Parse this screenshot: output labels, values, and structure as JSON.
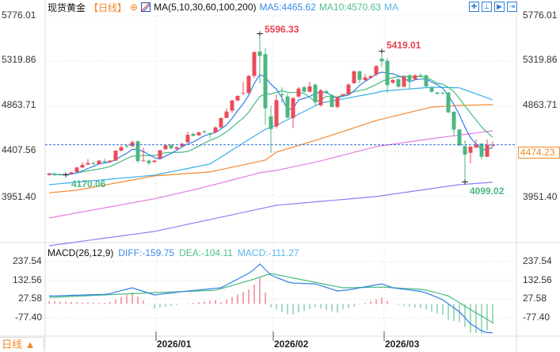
{
  "header": {
    "symbol": "现货黄金",
    "period": "【日线】",
    "ma_label": "MA(5,10,30,60,100,200)",
    "ma5": "MA5:4465.62",
    "ma10": "MA10:4570.63",
    "ma_more": "MA"
  },
  "toolbar": {
    "icons": [
      "crosshair-icon",
      "fit-icon",
      "range-icon",
      "exit-icon"
    ]
  },
  "macd_header": {
    "label": "MACD(26,12,9)",
    "diff": "DIFF:-159.75",
    "dea": "DEA:-104.11",
    "macd": "MACD:-111.27"
  },
  "price_axis": [
    "5776.01",
    "5319.86",
    "4863.71",
    "4407.56",
    "3951.40"
  ],
  "macd_axis": [
    "237.54",
    "132.56",
    "27.58",
    "-77.40"
  ],
  "dates": [
    "2026/01",
    "2026/02",
    "2026/03"
  ],
  "bottom_left": "日线 ▲",
  "last_price": "4474.23",
  "annotations": {
    "high1": "5596.33",
    "high2": "5419.01",
    "low1": "4170.06",
    "low2": "4099.02"
  },
  "colors": {
    "up": "#eb4b5a",
    "down": "#4cb782",
    "ma5": "#2f7fe6",
    "ma10": "#45bb7e",
    "ma30": "#36aee8",
    "ma60": "#f7892e",
    "ma100": "#e47ce0",
    "ma200": "#8d7ff2",
    "last": "#2a6fd6"
  },
  "chart_data": {
    "type": "candlestick",
    "title": "现货黄金 日线",
    "candle_fields": [
      "open",
      "close",
      "high",
      "low"
    ],
    "candles": [
      [
        4170,
        4183,
        4192,
        4160
      ],
      [
        4182,
        4168,
        4200,
        4160
      ],
      [
        4176,
        4170,
        4185,
        4160
      ],
      [
        4172,
        4176,
        4182,
        4170.06
      ],
      [
        4180,
        4196,
        4205,
        4175
      ],
      [
        4200,
        4245,
        4250,
        4195
      ],
      [
        4245,
        4272,
        4300,
        4240
      ],
      [
        4275,
        4290,
        4330,
        4270
      ],
      [
        4290,
        4282,
        4310,
        4270
      ],
      [
        4280,
        4315,
        4320,
        4275
      ],
      [
        4310,
        4300,
        4335,
        4295
      ],
      [
        4300,
        4315,
        4320,
        4295
      ],
      [
        4315,
        4415,
        4420,
        4310
      ],
      [
        4415,
        4450,
        4470,
        4410
      ],
      [
        4465,
        4460,
        4480,
        4440
      ],
      [
        4460,
        4500,
        4520,
        4455
      ],
      [
        4510,
        4310,
        4515,
        4290
      ],
      [
        4310,
        4315,
        4445,
        4310
      ],
      [
        4315,
        4290,
        4325,
        4270
      ],
      [
        4300,
        4315,
        4325,
        4295
      ],
      [
        4335,
        4420,
        4425,
        4330
      ],
      [
        4430,
        4470,
        4475,
        4420
      ],
      [
        4470,
        4440,
        4480,
        4425
      ],
      [
        4435,
        4450,
        4460,
        4425
      ],
      [
        4460,
        4485,
        4495,
        4455
      ],
      [
        4500,
        4575,
        4610,
        4495
      ],
      [
        4585,
        4565,
        4600,
        4560
      ],
      [
        4570,
        4600,
        4610,
        4565
      ],
      [
        4610,
        4600,
        4620,
        4590
      ],
      [
        4590,
        4575,
        4600,
        4540
      ],
      [
        4600,
        4650,
        4660,
        4595
      ],
      [
        4650,
        4745,
        4750,
        4645
      ],
      [
        4745,
        4810,
        4840,
        4745
      ],
      [
        4820,
        4922,
        4930,
        4800
      ],
      [
        4922,
        4968,
        4975,
        4915
      ],
      [
        4990,
        4996,
        5110,
        4985
      ],
      [
        4996,
        5170,
        5180,
        4990
      ],
      [
        5170,
        5410,
        5420,
        5150
      ],
      [
        5416,
        5370,
        5596.33,
        5095
      ],
      [
        5390,
        4842,
        5448,
        4677
      ],
      [
        4762,
        4634,
        4869,
        4395
      ],
      [
        4660,
        4925,
        4983,
        4640
      ],
      [
        4985,
        4975,
        5055,
        4900
      ],
      [
        4962,
        4749,
        4990,
        4745
      ],
      [
        4744,
        4944,
        4960,
        4642
      ],
      [
        4962,
        5042,
        5060,
        4950
      ],
      [
        5056,
        5010,
        5070,
        5000
      ],
      [
        5010,
        5064,
        5110,
        5005
      ],
      [
        5082,
        4904,
        5090,
        4870
      ],
      [
        4874,
        5024,
        5040,
        4860
      ],
      [
        5016,
        5002,
        5030,
        4990
      ],
      [
        4976,
        4856,
        4985,
        4850
      ],
      [
        4856,
        4955,
        4965,
        4840
      ],
      [
        4970,
        4984,
        4990,
        4965
      ],
      [
        4984,
        5083,
        5095,
        4980
      ],
      [
        5096,
        5216,
        5226,
        5090
      ],
      [
        5216,
        5130,
        5226,
        5095
      ],
      [
        5128,
        5155,
        5190,
        5110
      ],
      [
        5150,
        5168,
        5175,
        5140
      ],
      [
        5184,
        5269,
        5280,
        5165
      ],
      [
        5344,
        5317,
        5419.01,
        5260
      ],
      [
        5323,
        5077,
        5350,
        5000
      ],
      [
        5101,
        5128,
        5140,
        5090
      ],
      [
        5136,
        5061,
        5145,
        5050
      ],
      [
        5061,
        5162,
        5170,
        5055
      ],
      [
        5176,
        5123,
        5190,
        5040
      ],
      [
        5136,
        5176,
        5186,
        5130
      ],
      [
        5176,
        5168,
        5200,
        5160
      ],
      [
        5176,
        5064,
        5185,
        5055
      ],
      [
        5056,
        5010,
        5060,
        5000
      ],
      [
        5002,
        4989,
        5010,
        4980
      ],
      [
        4998,
        4990,
        5010,
        4980
      ],
      [
        5002,
        4802,
        5010,
        4795
      ],
      [
        4808,
        4629,
        4812,
        4560
      ],
      [
        4629,
        4469,
        4635,
        4460
      ],
      [
        4461,
        4376,
        4520,
        4099.02
      ],
      [
        4394,
        4456,
        4462,
        4288
      ],
      [
        4448,
        4477,
        4530,
        4440
      ],
      [
        4488,
        4354,
        4490,
        4330
      ],
      [
        4354,
        4474,
        4530,
        4350
      ],
      [
        4463,
        4474.23,
        4506,
        4451
      ]
    ],
    "ma_sparse": {
      "ma30": [
        [
          0,
          4072
        ],
        [
          19,
          4168
        ],
        [
          29,
          4280
        ],
        [
          39,
          4632
        ],
        [
          41,
          4672
        ],
        [
          49,
          4896
        ],
        [
          59,
          5000
        ],
        [
          60,
          5016
        ],
        [
          69,
          5056
        ],
        [
          74,
          5050
        ],
        [
          80,
          4928
        ]
      ],
      "ma60": [
        [
          0,
          3990
        ],
        [
          5,
          4016
        ],
        [
          19,
          4160
        ],
        [
          29,
          4200
        ],
        [
          39,
          4320
        ],
        [
          41,
          4400
        ],
        [
          49,
          4536
        ],
        [
          59,
          4720
        ],
        [
          69,
          4856
        ],
        [
          74,
          4872
        ],
        [
          80,
          4880
        ]
      ],
      "ma100": [
        [
          0,
          3736
        ],
        [
          19,
          3930
        ],
        [
          27,
          4032
        ],
        [
          38,
          4192
        ],
        [
          41,
          4216
        ],
        [
          49,
          4312
        ],
        [
          59,
          4456
        ],
        [
          69,
          4536
        ],
        [
          80,
          4616
        ]
      ],
      "ma200": [
        [
          0,
          3456
        ],
        [
          19,
          3600
        ],
        [
          41,
          3864
        ],
        [
          59,
          3952
        ],
        [
          74,
          4072
        ],
        [
          80,
          4096
        ]
      ]
    },
    "macd": {
      "diff": [
        [
          0,
          45
        ],
        [
          10.5,
          55
        ],
        [
          15,
          91
        ],
        [
          19,
          51
        ],
        [
          25,
          73
        ],
        [
          31,
          91
        ],
        [
          36.5,
          180
        ],
        [
          38,
          224
        ],
        [
          40,
          162
        ],
        [
          43.5,
          118
        ],
        [
          48,
          113
        ],
        [
          52,
          73
        ],
        [
          54.5,
          82
        ],
        [
          56,
          91
        ],
        [
          60,
          113
        ],
        [
          62,
          91
        ],
        [
          67.5,
          69
        ],
        [
          71,
          24
        ],
        [
          74,
          -43
        ],
        [
          76,
          -110
        ],
        [
          78.5,
          -159
        ],
        [
          80,
          -159.75
        ]
      ],
      "dea": [
        [
          0,
          37
        ],
        [
          19,
          64
        ],
        [
          30,
          77
        ],
        [
          36.5,
          135
        ],
        [
          40,
          171
        ],
        [
          45,
          140
        ],
        [
          53,
          91
        ],
        [
          60,
          95
        ],
        [
          67.5,
          82
        ],
        [
          72,
          46
        ],
        [
          75,
          -12
        ],
        [
          80,
          -104.11
        ]
      ]
    },
    "price_range": [
      3951.4,
      5776.01
    ],
    "macd_range": [
      -77.4,
      237.54
    ],
    "ylabel": "",
    "xlabel": ""
  }
}
